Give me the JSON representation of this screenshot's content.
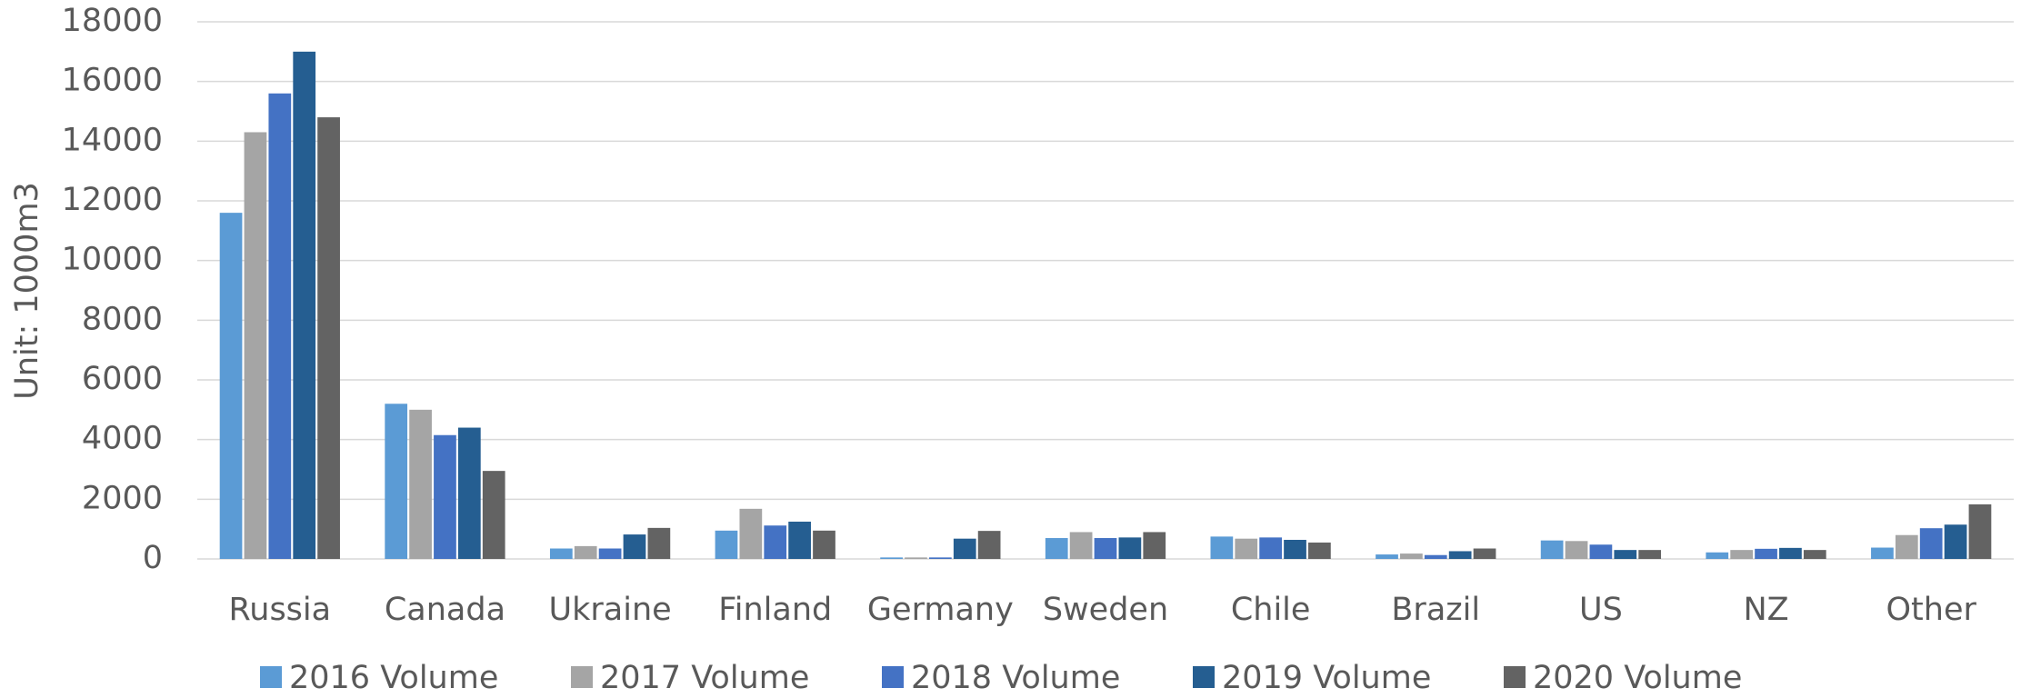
{
  "chart_data": {
    "type": "bar",
    "ylabel": "Unit: 1000m3",
    "categories": [
      "Russia",
      "Canada",
      "Ukraine",
      "Finland",
      "Germany",
      "Sweden",
      "Chile",
      "Brazil",
      "US",
      "NZ",
      "Other"
    ],
    "series": [
      {
        "name": "2016 Volume",
        "color": "#5b9bd5",
        "values": [
          11600,
          5200,
          350,
          950,
          50,
          700,
          750,
          150,
          620,
          220,
          380
        ]
      },
      {
        "name": "2017 Volume",
        "color": "#a5a5a5",
        "values": [
          14300,
          5000,
          430,
          1680,
          50,
          900,
          680,
          180,
          600,
          300,
          800
        ]
      },
      {
        "name": "2018 Volume",
        "color": "#4472c4",
        "values": [
          15600,
          4150,
          350,
          1120,
          50,
          700,
          720,
          130,
          480,
          340,
          1030
        ]
      },
      {
        "name": "2019 Volume",
        "color": "#255e91",
        "values": [
          17000,
          4400,
          820,
          1250,
          680,
          720,
          640,
          260,
          300,
          370,
          1150
        ]
      },
      {
        "name": "2020 Volume",
        "color": "#636363",
        "values": [
          14800,
          2950,
          1040,
          950,
          940,
          900,
          550,
          350,
          300,
          300,
          1830
        ]
      }
    ],
    "ylim": [
      0,
      18000
    ],
    "yticks": [
      0,
      2000,
      4000,
      6000,
      8000,
      10000,
      12000,
      14000,
      16000,
      18000
    ],
    "grid": true,
    "legend": "bottom"
  }
}
